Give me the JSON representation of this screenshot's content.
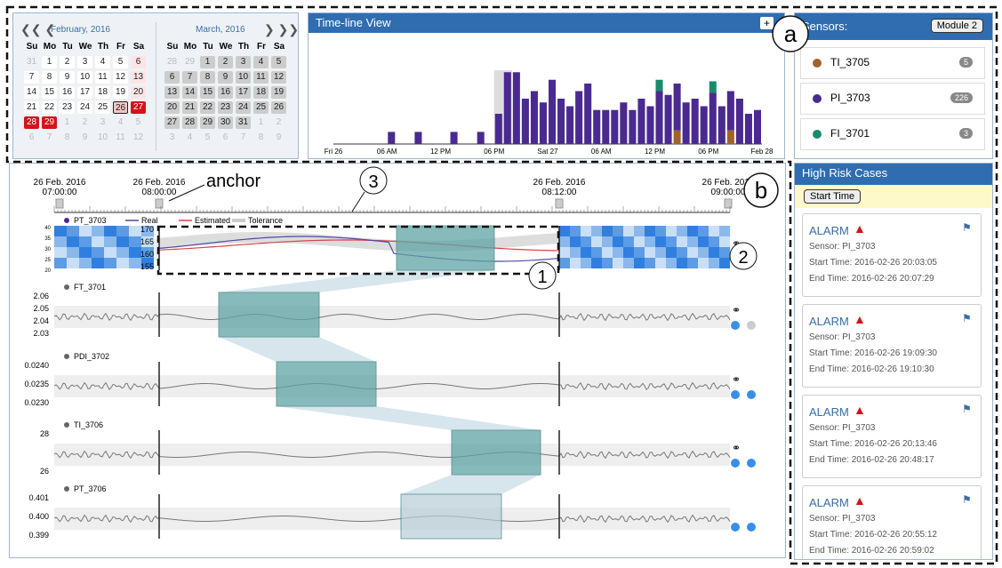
{
  "calendar": {
    "months": [
      {
        "title": "February, 2016",
        "weeks": [
          [
            31,
            1,
            2,
            3,
            4,
            5,
            6
          ],
          [
            7,
            8,
            9,
            10,
            11,
            12,
            13
          ],
          [
            14,
            15,
            16,
            17,
            18,
            19,
            20
          ],
          [
            21,
            22,
            23,
            24,
            25,
            26,
            27
          ],
          [
            28,
            29,
            1,
            2,
            3,
            4,
            5
          ],
          [
            6,
            7,
            8,
            9,
            10,
            11,
            12
          ]
        ]
      },
      {
        "title": "March, 2016",
        "weeks": [
          [
            28,
            29,
            1,
            2,
            3,
            4,
            5
          ],
          [
            6,
            7,
            8,
            9,
            10,
            11,
            12
          ],
          [
            13,
            14,
            15,
            16,
            17,
            18,
            19
          ],
          [
            20,
            21,
            22,
            23,
            24,
            25,
            26
          ],
          [
            27,
            28,
            29,
            30,
            31,
            1,
            2
          ],
          [
            3,
            4,
            5,
            6,
            7,
            8,
            9
          ]
        ]
      }
    ],
    "weekdays": [
      "Su",
      "Mo",
      "Tu",
      "We",
      "Th",
      "Fr",
      "Sa"
    ]
  },
  "timeline": {
    "title": "Time-line View",
    "button": "+",
    "xlabels": [
      "Fri 26",
      "06 AM",
      "12 PM",
      "06 PM",
      "Sat 27",
      "06 AM",
      "12 PM",
      "06 PM",
      "Feb 28"
    ],
    "ylim": [
      0,
      100
    ],
    "series": [
      {
        "color": "#a0622a",
        "values": [
          0,
          0,
          0,
          0,
          0,
          0,
          0,
          0,
          0,
          0,
          0,
          0,
          0,
          0,
          0,
          0,
          0,
          0,
          0,
          0,
          0,
          0,
          0,
          0,
          0,
          0,
          0,
          0,
          0,
          0,
          0,
          0,
          0,
          0,
          0,
          0,
          0,
          0,
          18,
          0,
          0,
          0,
          0,
          0,
          18,
          0,
          0,
          0
        ]
      },
      {
        "color": "#4b2a8f",
        "values": [
          0,
          0,
          0,
          0,
          0,
          0,
          16,
          0,
          0,
          16,
          0,
          0,
          0,
          16,
          0,
          0,
          16,
          0,
          40,
          95,
          95,
          60,
          70,
          55,
          85,
          60,
          50,
          70,
          80,
          45,
          45,
          45,
          55,
          45,
          60,
          50,
          70,
          65,
          62,
          55,
          60,
          50,
          68,
          50,
          52,
          60,
          40,
          45
        ]
      },
      {
        "color": "#1a8a6e",
        "values": [
          0,
          0,
          0,
          0,
          0,
          0,
          0,
          0,
          0,
          0,
          0,
          0,
          0,
          0,
          0,
          0,
          0,
          0,
          0,
          0,
          0,
          0,
          0,
          0,
          0,
          0,
          0,
          0,
          0,
          0,
          0,
          0,
          0,
          0,
          0,
          0,
          15,
          0,
          0,
          0,
          0,
          0,
          15,
          0,
          0,
          0,
          0,
          0
        ]
      }
    ]
  },
  "sensors": {
    "title": "Sensors:",
    "module": "Module 2",
    "items": [
      {
        "name": "TI_3705",
        "count": "5",
        "color": "#a0622a"
      },
      {
        "name": "PI_3703",
        "count": "226",
        "color": "#4b2a8f"
      },
      {
        "name": "FI_3701",
        "count": "3",
        "color": "#1a8a6e"
      }
    ]
  },
  "cases": {
    "title": "High Risk Cases",
    "sort": "Start Time",
    "items": [
      {
        "type": "ALARM",
        "sensor": "Sensor: PI_3703",
        "start": "Start Time: 2016-02-26 20:03:05",
        "end": "End Time: 2016-02-26 20:07:29"
      },
      {
        "type": "ALARM",
        "sensor": "Sensor: PI_3703",
        "start": "Start Time: 2016-02-26 19:09:30",
        "end": "End Time: 2016-02-26 19:10:30"
      },
      {
        "type": "ALARM",
        "sensor": "Sensor: PI_3703",
        "start": "Start Time: 2016-02-26 20:13:46",
        "end": "End Time: 2016-02-26 20:48:17"
      },
      {
        "type": "ALARM",
        "sensor": "Sensor: PI_3703",
        "start": "Start Time: 2016-02-26 20:55:12",
        "end": "End Time: 2016-02-26 20:59:02"
      }
    ]
  },
  "main": {
    "axis": [
      {
        "date": "26 Feb. 2016",
        "time": "07:00:00"
      },
      {
        "date": "26 Feb. 2016",
        "time": "08:00:00"
      },
      {
        "date": "26 Feb. 2016",
        "time": "08:12:00"
      },
      {
        "date": "26 Feb. 2016",
        "time": "09:00:00"
      }
    ],
    "legend": [
      "Real",
      "Estimated",
      "Tolerance"
    ],
    "heat_ticks": [
      "40",
      "35",
      "30",
      "25",
      "20"
    ],
    "rows": [
      {
        "name": "PT_3703",
        "ticks": [
          "170",
          "165",
          "160",
          "155"
        ]
      },
      {
        "name": "FT_3701",
        "ticks": [
          "2.06",
          "2.05",
          "2.04",
          "2.03"
        ]
      },
      {
        "name": "PDI_3702",
        "ticks": [
          "0.0240",
          "0.0235",
          "0.0230"
        ]
      },
      {
        "name": "TI_3706",
        "ticks": [
          "28",
          "26"
        ]
      },
      {
        "name": "PT_3706",
        "ticks": [
          "0.401",
          "0.400",
          "0.399"
        ]
      }
    ]
  },
  "annotations": {
    "anchor": "anchor",
    "a": "a",
    "b": "b",
    "n1": "1",
    "n2": "2",
    "n3": "3"
  }
}
